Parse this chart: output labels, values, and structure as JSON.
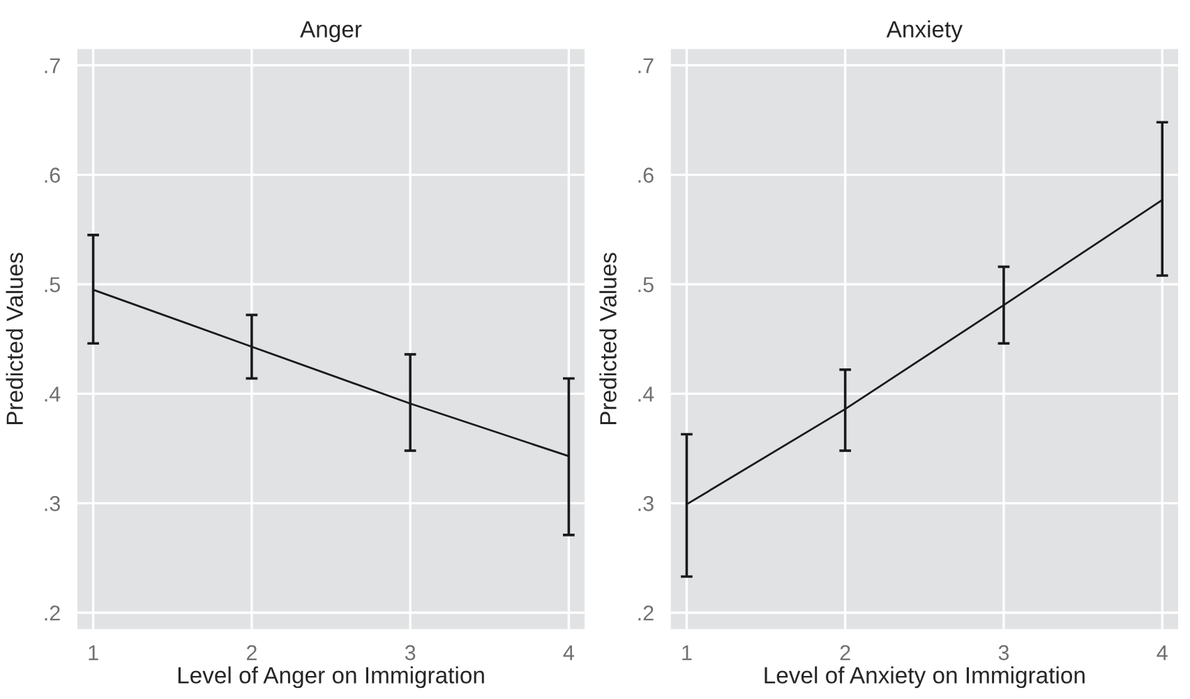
{
  "chart_data": [
    {
      "type": "line",
      "title": "Anger",
      "xlabel": "Level of Anger on Immigration",
      "ylabel": "Predicted Values",
      "x": [
        1,
        2,
        3,
        4
      ],
      "series": [
        {
          "color": "#1a1a1a",
          "values": [
            0.495,
            0.443,
            0.391,
            0.343
          ],
          "errors": [
            [
              0.446,
              0.545
            ],
            [
              0.414,
              0.472
            ],
            [
              0.348,
              0.436
            ],
            [
              0.271,
              0.414
            ]
          ]
        }
      ],
      "xlim": [
        0.9,
        4.1
      ],
      "xticks": [
        1,
        2,
        3,
        4
      ],
      "ylim": [
        0.185,
        0.715
      ],
      "yticks": [
        {
          "value": 0.2,
          "label": ".2"
        },
        {
          "value": 0.3,
          "label": ".3"
        },
        {
          "value": 0.4,
          "label": ".4"
        },
        {
          "value": 0.5,
          "label": ".5"
        },
        {
          "value": 0.6,
          "label": ".6"
        },
        {
          "value": 0.7,
          "label": ".7"
        }
      ],
      "grid": true,
      "marker": "none",
      "line_style": "solid"
    },
    {
      "type": "line",
      "title": "Anxiety",
      "xlabel": "Level of Anxiety on Immigration",
      "ylabel": "Predicted Values",
      "x": [
        1,
        2,
        3,
        4
      ],
      "series": [
        {
          "color": "#1a1a1a",
          "values": [
            0.299,
            0.386,
            0.481,
            0.577
          ],
          "errors": [
            [
              0.233,
              0.363
            ],
            [
              0.348,
              0.422
            ],
            [
              0.446,
              0.516
            ],
            [
              0.508,
              0.648
            ]
          ]
        }
      ],
      "xlim": [
        0.9,
        4.1
      ],
      "xticks": [
        1,
        2,
        3,
        4
      ],
      "ylim": [
        0.185,
        0.715
      ],
      "yticks": [
        {
          "value": 0.2,
          "label": ".2"
        },
        {
          "value": 0.3,
          "label": ".3"
        },
        {
          "value": 0.4,
          "label": ".4"
        },
        {
          "value": 0.5,
          "label": ".5"
        },
        {
          "value": 0.6,
          "label": ".6"
        },
        {
          "value": 0.7,
          "label": ".7"
        }
      ],
      "grid": true,
      "marker": "none",
      "line_style": "solid"
    }
  ]
}
